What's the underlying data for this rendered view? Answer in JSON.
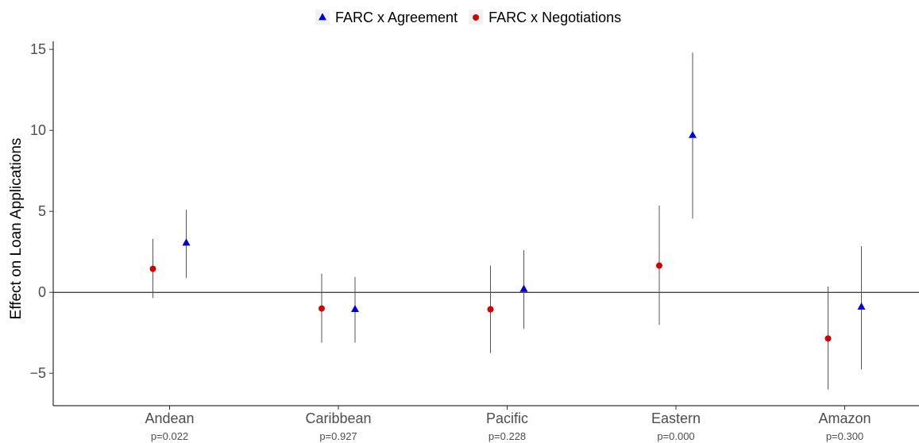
{
  "chart_data": {
    "type": "scatter",
    "title": "",
    "xlabel": "",
    "ylabel": "Effect on Loan Applications",
    "ylim": [
      -7,
      15.5
    ],
    "yticks": [
      -5,
      0,
      5,
      10,
      15
    ],
    "reference_line_y": 0,
    "grid": false,
    "legend_position": "top",
    "categories": [
      "Andean",
      "Caribbean",
      "Pacific",
      "Eastern",
      "Amazon"
    ],
    "pvalues": [
      "p=0.022",
      "p=0.927",
      "p=0.228",
      "p=0.000",
      "p=0.300"
    ],
    "series": [
      {
        "name": "FARC x Negotiations",
        "marker": "circle",
        "color": "#cc0000",
        "values": [
          1.45,
          -1.0,
          -1.05,
          1.65,
          -2.85
        ],
        "ci_low": [
          -0.35,
          -3.1,
          -3.75,
          -2.0,
          -6.0
        ],
        "ci_high": [
          3.3,
          1.15,
          1.65,
          5.35,
          0.35
        ]
      },
      {
        "name": "FARC x Agreement",
        "marker": "triangle",
        "color": "#0000cc",
        "values": [
          3.05,
          -1.05,
          0.2,
          9.7,
          -0.9
        ],
        "ci_low": [
          0.9,
          -3.1,
          -2.25,
          4.55,
          -4.75
        ],
        "ci_high": [
          5.1,
          0.95,
          2.6,
          14.8,
          2.85
        ]
      }
    ],
    "legend": [
      {
        "label": "FARC x Agreement",
        "marker": "triangle",
        "color": "#0000cc"
      },
      {
        "label": "FARC x Negotiations",
        "marker": "circle",
        "color": "#cc0000"
      }
    ]
  }
}
